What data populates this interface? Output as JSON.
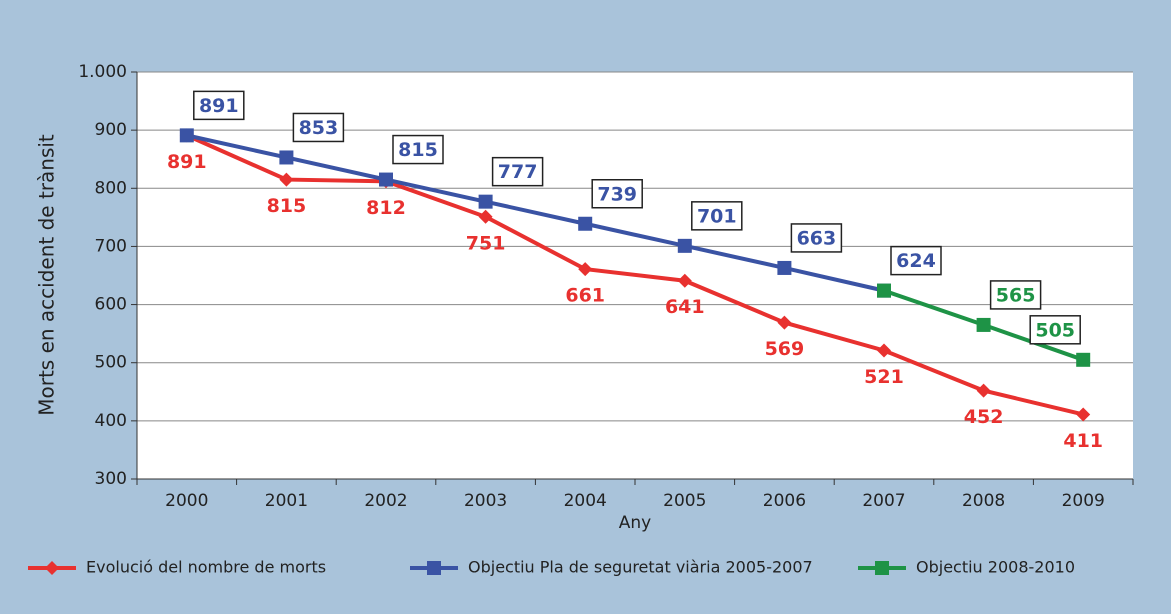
{
  "chart_data": {
    "type": "line",
    "categories": [
      "2000",
      "2001",
      "2002",
      "2003",
      "2004",
      "2005",
      "2006",
      "2007",
      "2008",
      "2009"
    ],
    "series": [
      {
        "name": "Evolució del nombre de morts",
        "color": "#e8312f",
        "marker": "diamond",
        "values": [
          891,
          815,
          812,
          751,
          661,
          641,
          569,
          521,
          452,
          411
        ]
      },
      {
        "name": "Objectiu Pla de seguretat viària 2005-2007",
        "color": "#3a53a4",
        "marker": "square",
        "values": [
          891,
          853,
          815,
          777,
          739,
          701,
          663,
          624,
          null,
          null
        ]
      },
      {
        "name": "Objectiu 2008-2010",
        "color": "#1e9346",
        "marker": "square",
        "values": [
          null,
          null,
          null,
          null,
          null,
          null,
          null,
          624,
          565,
          505
        ]
      }
    ],
    "ylabel": "Morts en accident de trànsit",
    "xlabel": "Any",
    "ylim": [
      300,
      1000
    ],
    "yticks": [
      300,
      400,
      500,
      600,
      700,
      800,
      900,
      {
        "value": 1000,
        "label": "1.000"
      }
    ],
    "grid": true
  }
}
